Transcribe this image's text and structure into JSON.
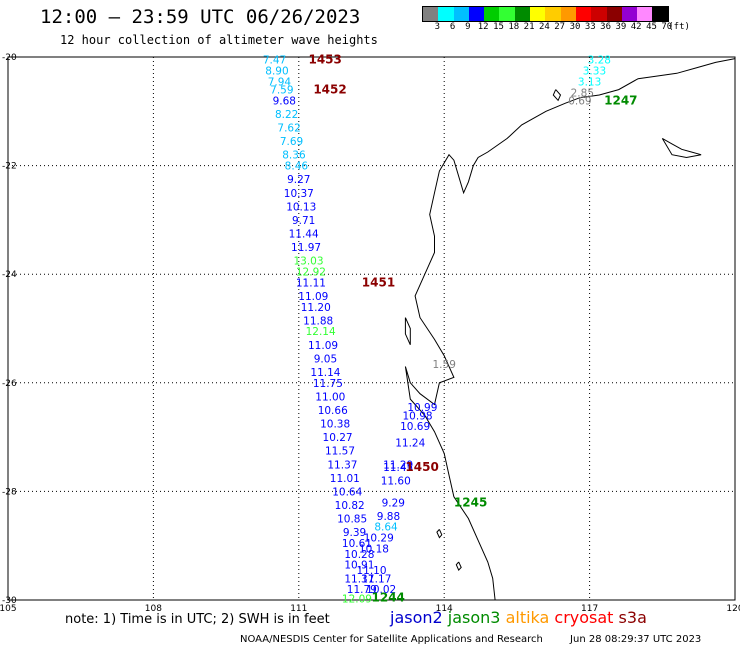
{
  "header": {
    "title": "12:00 – 23:59 UTC 06/26/2023",
    "subtitle": "12 hour collection of altimeter wave heights"
  },
  "colorbar": {
    "colors": [
      "#808080",
      "#00ffff",
      "#00bfff",
      "#0000ff",
      "#00cd00",
      "#33ff33",
      "#008b00",
      "#ffff00",
      "#ffcc00",
      "#ff9900",
      "#ff0000",
      "#cd0000",
      "#8b0000",
      "#9400d3",
      "#ff88ff",
      "#000000"
    ],
    "labels": [
      "3",
      "6",
      "9",
      "12",
      "15",
      "18",
      "21",
      "24",
      "27",
      "30",
      "33",
      "36",
      "39",
      "42",
      "45",
      "70",
      "(ft)"
    ]
  },
  "map": {
    "lon_range": [
      105,
      120
    ],
    "lat_range": [
      -30,
      -20
    ],
    "x_labels": [
      "105",
      "108",
      "111",
      "114",
      "117",
      "120"
    ],
    "y_labels": [
      "-20",
      "-22",
      "-24",
      "-26",
      "-28",
      "-30"
    ]
  },
  "pass_labels": [
    {
      "text": "1453",
      "lon": 111.2,
      "lat": -20.05,
      "color": "#8b0000"
    },
    {
      "text": "1452",
      "lon": 111.3,
      "lat": -20.6,
      "color": "#8b0000"
    },
    {
      "text": "1451",
      "lon": 112.3,
      "lat": -24.15,
      "color": "#8b0000"
    },
    {
      "text": "1450",
      "lon": 113.2,
      "lat": -27.55,
      "color": "#8b0000"
    },
    {
      "text": "1247",
      "lon": 117.3,
      "lat": -20.8,
      "color": "#008b00"
    },
    {
      "text": "1245",
      "lon": 114.2,
      "lat": -28.2,
      "color": "#008b00"
    },
    {
      "text": "1244",
      "lon": 112.5,
      "lat": -29.95,
      "color": "#008b00"
    }
  ],
  "wave_heights": [
    {
      "value": "7.47",
      "lon": 110.5,
      "lat": -20.05,
      "color": "#00bfff"
    },
    {
      "value": "8.90",
      "lon": 110.55,
      "lat": -20.25,
      "color": "#00bfff"
    },
    {
      "value": "7.94",
      "lon": 110.6,
      "lat": -20.45,
      "color": "#00bfff"
    },
    {
      "value": "7.59",
      "lon": 110.65,
      "lat": -20.6,
      "color": "#00bfff"
    },
    {
      "value": "9.68",
      "lon": 110.7,
      "lat": -20.8,
      "color": "#0000ff"
    },
    {
      "value": "8.22",
      "lon": 110.75,
      "lat": -21.05,
      "color": "#00bfff"
    },
    {
      "value": "7.62",
      "lon": 110.8,
      "lat": -21.3,
      "color": "#00bfff"
    },
    {
      "value": "7.69",
      "lon": 110.85,
      "lat": -21.55,
      "color": "#00bfff"
    },
    {
      "value": "8.36",
      "lon": 110.9,
      "lat": -21.8,
      "color": "#00bfff"
    },
    {
      "value": "8.46",
      "lon": 110.95,
      "lat": -22.0,
      "color": "#00bfff"
    },
    {
      "value": "9.27",
      "lon": 111.0,
      "lat": -22.25,
      "color": "#0000ff"
    },
    {
      "value": "10.37",
      "lon": 111.0,
      "lat": -22.5,
      "color": "#0000ff"
    },
    {
      "value": "10.13",
      "lon": 111.05,
      "lat": -22.75,
      "color": "#0000ff"
    },
    {
      "value": "9.71",
      "lon": 111.1,
      "lat": -23.0,
      "color": "#0000ff"
    },
    {
      "value": "11.44",
      "lon": 111.1,
      "lat": -23.25,
      "color": "#0000ff"
    },
    {
      "value": "11.97",
      "lon": 111.15,
      "lat": -23.5,
      "color": "#0000ff"
    },
    {
      "value": "13.03",
      "lon": 111.2,
      "lat": -23.75,
      "color": "#33ff33"
    },
    {
      "value": "12.92",
      "lon": 111.25,
      "lat": -23.95,
      "color": "#33ff33"
    },
    {
      "value": "11.11",
      "lon": 111.25,
      "lat": -24.15,
      "color": "#0000ff"
    },
    {
      "value": "11.09",
      "lon": 111.3,
      "lat": -24.4,
      "color": "#0000ff"
    },
    {
      "value": "11.20",
      "lon": 111.35,
      "lat": -24.6,
      "color": "#0000ff"
    },
    {
      "value": "11.88",
      "lon": 111.4,
      "lat": -24.85,
      "color": "#0000ff"
    },
    {
      "value": "12.14",
      "lon": 111.45,
      "lat": -25.05,
      "color": "#33ff33"
    },
    {
      "value": "11.09",
      "lon": 111.5,
      "lat": -25.3,
      "color": "#0000ff"
    },
    {
      "value": "9.05",
      "lon": 111.55,
      "lat": -25.55,
      "color": "#0000ff"
    },
    {
      "value": "11.14",
      "lon": 111.55,
      "lat": -25.8,
      "color": "#0000ff"
    },
    {
      "value": "11.75",
      "lon": 111.6,
      "lat": -26.0,
      "color": "#0000ff"
    },
    {
      "value": "11.00",
      "lon": 111.65,
      "lat": -26.25,
      "color": "#0000ff"
    },
    {
      "value": "10.66",
      "lon": 111.7,
      "lat": -26.5,
      "color": "#0000ff"
    },
    {
      "value": "10.38",
      "lon": 111.75,
      "lat": -26.75,
      "color": "#0000ff"
    },
    {
      "value": "10.27",
      "lon": 111.8,
      "lat": -27.0,
      "color": "#0000ff"
    },
    {
      "value": "11.57",
      "lon": 111.85,
      "lat": -27.25,
      "color": "#0000ff"
    },
    {
      "value": "11.37",
      "lon": 111.9,
      "lat": -27.5,
      "color": "#0000ff"
    },
    {
      "value": "11.01",
      "lon": 111.95,
      "lat": -27.75,
      "color": "#0000ff"
    },
    {
      "value": "10.64",
      "lon": 112.0,
      "lat": -28.0,
      "color": "#0000ff"
    },
    {
      "value": "10.82",
      "lon": 112.05,
      "lat": -28.25,
      "color": "#0000ff"
    },
    {
      "value": "10.85",
      "lon": 112.1,
      "lat": -28.5,
      "color": "#0000ff"
    },
    {
      "value": "9.39",
      "lon": 112.15,
      "lat": -28.75,
      "color": "#0000ff"
    },
    {
      "value": "10.61",
      "lon": 112.2,
      "lat": -28.95,
      "color": "#0000ff"
    },
    {
      "value": "10.28",
      "lon": 112.25,
      "lat": -29.15,
      "color": "#0000ff"
    },
    {
      "value": "10.91",
      "lon": 112.25,
      "lat": -29.35,
      "color": "#0000ff"
    },
    {
      "value": "11.37",
      "lon": 112.25,
      "lat": -29.6,
      "color": "#0000ff"
    },
    {
      "value": "11.79",
      "lon": 112.3,
      "lat": -29.8,
      "color": "#0000ff"
    },
    {
      "value": "12.09",
      "lon": 112.2,
      "lat": -29.97,
      "color": "#33ff33"
    },
    {
      "value": "11.10",
      "lon": 112.5,
      "lat": -29.45,
      "color": "#0000ff"
    },
    {
      "value": "11.17",
      "lon": 112.6,
      "lat": -29.6,
      "color": "#0000ff"
    },
    {
      "value": "10.02",
      "lon": 112.7,
      "lat": -29.8,
      "color": "#0000ff"
    },
    {
      "value": "10.18",
      "lon": 112.55,
      "lat": -29.05,
      "color": "#0000ff"
    },
    {
      "value": "10.29",
      "lon": 112.65,
      "lat": -28.85,
      "color": "#0000ff"
    },
    {
      "value": "8.64",
      "lon": 112.8,
      "lat": -28.65,
      "color": "#00bfff"
    },
    {
      "value": "9.88",
      "lon": 112.85,
      "lat": -28.45,
      "color": "#0000ff"
    },
    {
      "value": "9.29",
      "lon": 112.95,
      "lat": -28.2,
      "color": "#0000ff"
    },
    {
      "value": "11.60",
      "lon": 113.0,
      "lat": -27.8,
      "color": "#0000ff"
    },
    {
      "value": "11.45",
      "lon": 113.05,
      "lat": -27.55,
      "color": "#0000ff"
    },
    {
      "value": "11.29",
      "lon": 113.05,
      "lat": -27.5,
      "color": "#0000ff"
    },
    {
      "value": "11.24",
      "lon": 113.3,
      "lat": -27.1,
      "color": "#0000ff"
    },
    {
      "value": "10.69",
      "lon": 113.4,
      "lat": -26.8,
      "color": "#0000ff"
    },
    {
      "value": "10.98",
      "lon": 113.45,
      "lat": -26.6,
      "color": "#0000ff"
    },
    {
      "value": "10.99",
      "lon": 113.55,
      "lat": -26.45,
      "color": "#0000ff"
    },
    {
      "value": "1.59",
      "lon": 114.0,
      "lat": -25.65,
      "color": "#808080"
    },
    {
      "value": "3.28",
      "lon": 117.2,
      "lat": -20.05,
      "color": "#00ffff"
    },
    {
      "value": "3.33",
      "lon": 117.1,
      "lat": -20.25,
      "color": "#00ffff"
    },
    {
      "value": "3.13",
      "lon": 117.0,
      "lat": -20.45,
      "color": "#00ffff"
    },
    {
      "value": "2.85",
      "lon": 116.85,
      "lat": -20.65,
      "color": "#808080"
    },
    {
      "value": "0.69",
      "lon": 116.8,
      "lat": -20.8,
      "color": "#808080"
    }
  ],
  "note": "note: 1) Time is in UTC; 2) SWH is in feet",
  "legend": [
    {
      "label": "jason2",
      "color": "#0000cd"
    },
    {
      "label": "jason3",
      "color": "#008b00"
    },
    {
      "label": "altika",
      "color": "#ff9900"
    },
    {
      "label": "cryosat",
      "color": "#ff0000"
    },
    {
      "label": "s3a",
      "color": "#8b0000"
    }
  ],
  "footer": {
    "source": "NOAA/NESDIS Center for Satellite Applications and Research",
    "timestamp": "Jun 28 08:29:37 UTC 2023"
  }
}
